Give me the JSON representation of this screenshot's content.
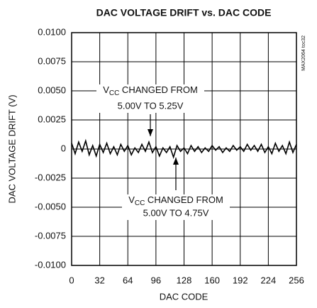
{
  "chart_data": {
    "type": "line",
    "title": "DAC VOLTAGE DRIFT vs. DAC CODE",
    "xlabel": "DAC CODE",
    "ylabel": "DAC VOLTAGE DRIFT (V)",
    "note": "MAX2064 toc32",
    "annotations": [
      {
        "prefix": "V",
        "sub": "CC",
        "text": " CHANGED FROM",
        "line2": "5.00V TO 5.25V"
      },
      {
        "prefix": "V",
        "sub": "CC",
        "text": " CHANGED FROM",
        "line2": "5.00V TO 4.75V"
      }
    ],
    "x": [
      0,
      4,
      8,
      12,
      16,
      20,
      24,
      28,
      32,
      36,
      40,
      44,
      48,
      52,
      56,
      60,
      64,
      68,
      72,
      76,
      80,
      84,
      88,
      92,
      96,
      100,
      104,
      108,
      112,
      116,
      120,
      124,
      128,
      132,
      136,
      140,
      144,
      148,
      152,
      156,
      160,
      164,
      168,
      172,
      176,
      180,
      184,
      188,
      192,
      196,
      200,
      204,
      208,
      212,
      216,
      220,
      224,
      228,
      232,
      236,
      240,
      244,
      248,
      252,
      256
    ],
    "series": [
      {
        "name": "drift",
        "color": "#000000",
        "values": [
          0.0005,
          -0.0004,
          0.0006,
          -0.0002,
          0.0007,
          -0.0005,
          0.0003,
          -0.0006,
          0.0004,
          -0.0003,
          0.0005,
          -0.0004,
          0.0002,
          -0.0005,
          0.0004,
          -0.0002,
          0.0003,
          -0.0005,
          0.0001,
          -0.0003,
          0.0004,
          -0.0002,
          0.0006,
          -0.0003,
          0.0002,
          -0.0006,
          0.0001,
          -0.0003,
          0.0002,
          -0.0007,
          0.0003,
          -0.0002,
          0.0001,
          -0.0004,
          0.0003,
          -0.0002,
          0.0002,
          -0.0003,
          0.0001,
          -0.0002,
          0.0003,
          -0.0001,
          0.0002,
          -0.0003,
          0.0001,
          -0.0002,
          0.0003,
          -0.0001,
          0.0002,
          -0.0002,
          0.0004,
          -0.0001,
          0.0003,
          -0.0002,
          0.0004,
          -0.0003,
          0.0002,
          -0.0004,
          0.0005,
          -0.0002,
          0.0003,
          -0.0004,
          0.0006,
          -0.0003,
          0.0004
        ]
      }
    ],
    "xlim": [
      0,
      256
    ],
    "xticks": [
      0,
      32,
      64,
      96,
      128,
      160,
      192,
      224,
      256
    ],
    "ylim": [
      -0.01,
      0.01
    ],
    "yticks": [
      {
        "value": 0.01,
        "label": "0.0100"
      },
      0.0075,
      {
        "value": 0.005,
        "label": "0.0050"
      },
      0.0025,
      0,
      -0.0025,
      {
        "value": -0.005,
        "label": "-0.0050"
      },
      -0.0075,
      {
        "value": -0.01,
        "label": "-0.0100"
      }
    ],
    "grid": true
  }
}
